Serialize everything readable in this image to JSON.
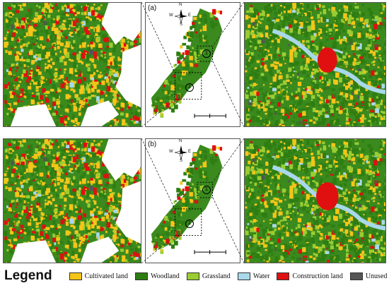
{
  "panels": [
    {
      "label": "(a)"
    },
    {
      "label": "(b)"
    }
  ],
  "compass": {
    "n": "N",
    "s": "S",
    "e": "E",
    "w": "W"
  },
  "markers": [
    "1",
    "2"
  ],
  "legend": {
    "title": "Legend",
    "items": [
      {
        "label": "Cultivated land",
        "color": "#f5c518"
      },
      {
        "label": "Woodland",
        "color": "#2e7d12"
      },
      {
        "label": "Grassland",
        "color": "#9acd32"
      },
      {
        "label": "Water",
        "color": "#a8d8ea"
      },
      {
        "label": "Construction land",
        "color": "#e01010"
      },
      {
        "label": "Unused land",
        "color": "#555555"
      }
    ]
  }
}
